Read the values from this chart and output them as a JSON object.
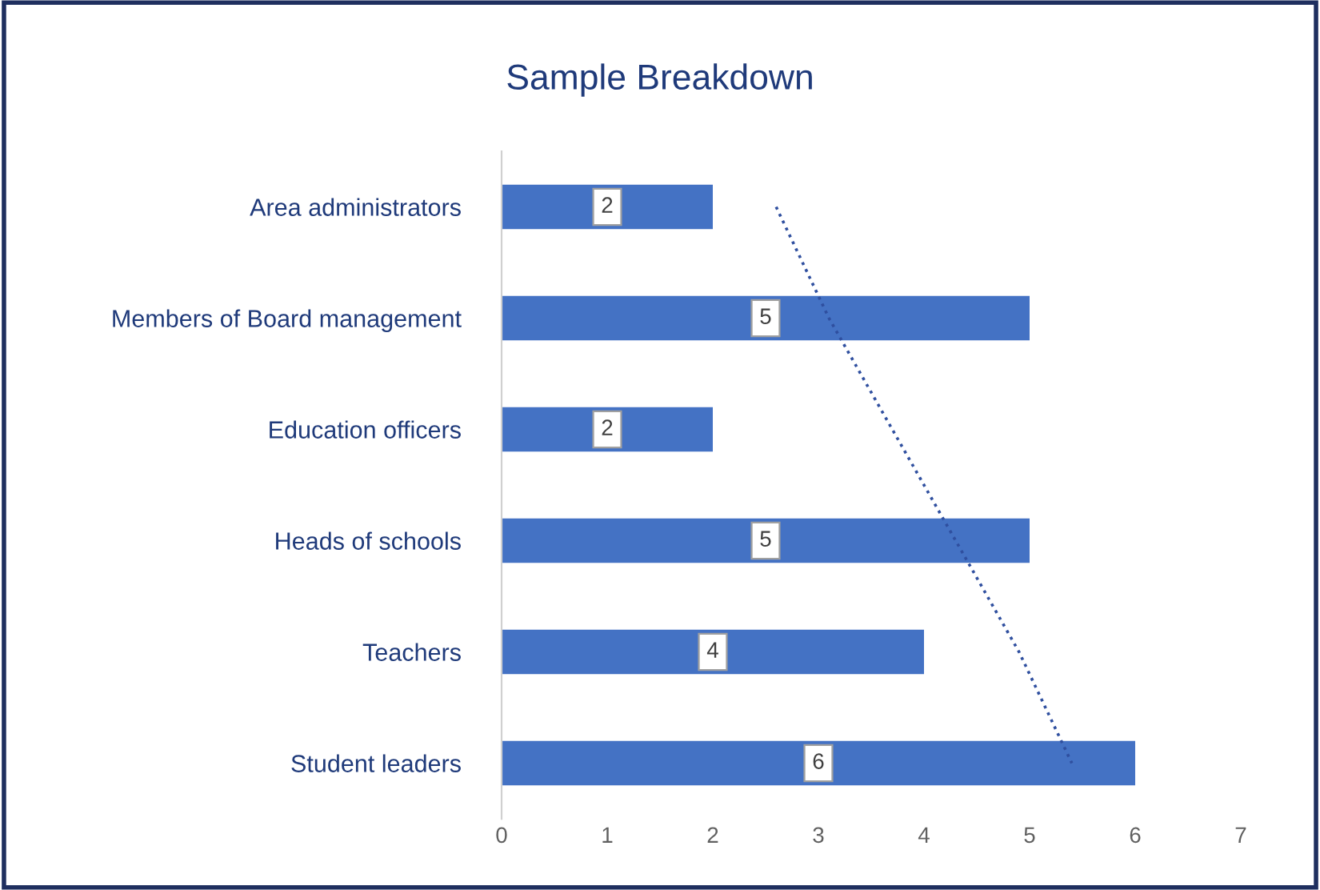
{
  "chart_data": {
    "type": "bar",
    "orientation": "horizontal",
    "title": "Sample Breakdown",
    "categories": [
      "Area administrators",
      "Members of Board management",
      "Education officers",
      "Heads of schools",
      "Teachers",
      "Student leaders"
    ],
    "series": [
      {
        "color": "#4472c4",
        "values": [
          2,
          5,
          2,
          5,
          4,
          6
        ],
        "value_labels": [
          "2",
          "5",
          "2",
          "5",
          "4",
          "6"
        ]
      },
      {
        "type": "line",
        "color": "#2f4f9f",
        "line_style": "dotted",
        "values": [
          2.6,
          3.1,
          3.7,
          4.3,
          4.9,
          5.4
        ]
      }
    ],
    "xlim": [
      0,
      7
    ],
    "xticks": [
      0,
      1,
      2,
      3,
      4,
      5,
      6,
      7
    ],
    "grid": false,
    "legend": false
  }
}
